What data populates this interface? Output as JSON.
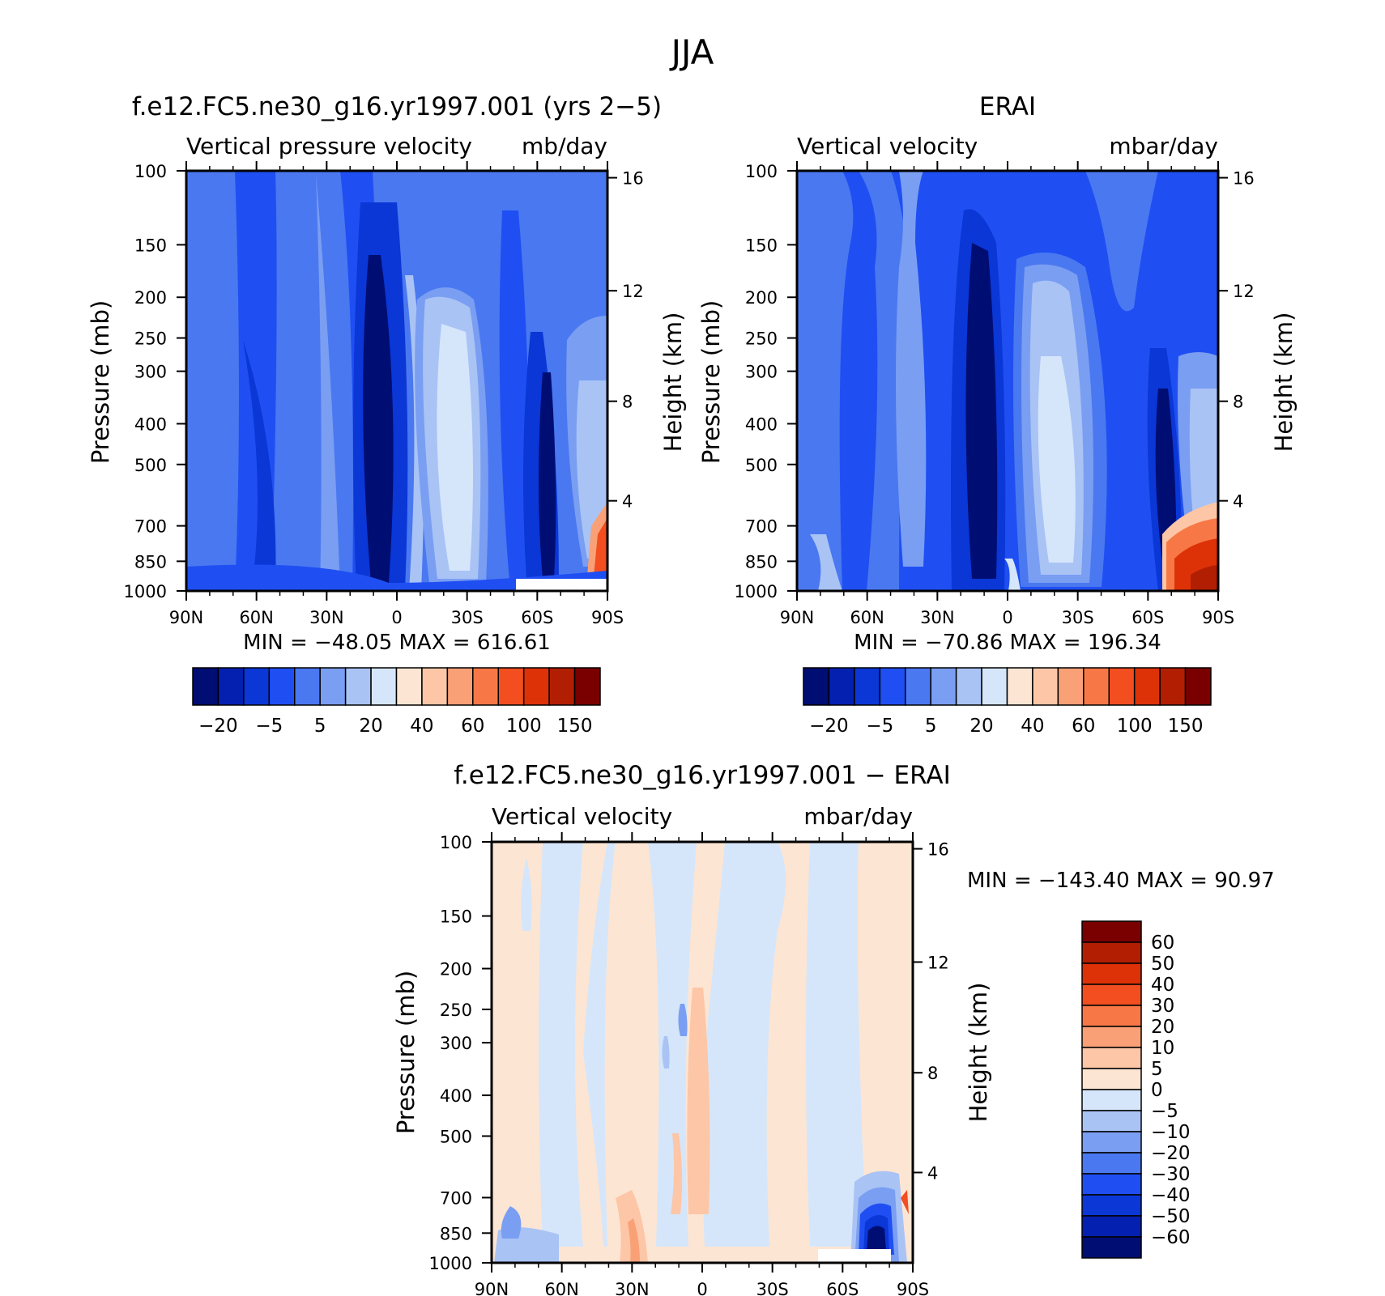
{
  "title": "JJA",
  "chart_data": [
    {
      "type": "contour",
      "title": "f.e12.FC5.ne30_g16.yr1997.001 (yrs 2−5)",
      "left_string": "Vertical pressure velocity",
      "right_string": "mb/day",
      "xlabel": "",
      "ylabel": "Pressure (mb)",
      "ylabel_right": "Height (km)",
      "x_ticks": [
        "90N",
        "60N",
        "30N",
        "0",
        "30S",
        "60S",
        "90S"
      ],
      "y_ticks": [
        "100",
        "150",
        "200",
        "250",
        "300",
        "400",
        "500",
        "700",
        "850",
        "1000"
      ],
      "y_ticks_right": [
        "16",
        "12",
        "8",
        "4"
      ],
      "min_max": "MIN = −48.05   MAX = 616.61",
      "colorbar": {
        "orientation": "horizontal",
        "colors": [
          "#000d73",
          "#0320b0",
          "#0a37d6",
          "#1f4ff2",
          "#4a78f0",
          "#7a9ef2",
          "#a9c3f5",
          "#d5e6fa",
          "#fde5d3",
          "#fcc6a7",
          "#faa077",
          "#f77846",
          "#f24e20",
          "#dd3108",
          "#b11e02",
          "#7a0000"
        ],
        "labels": [
          "−20",
          "−5",
          "5",
          "20",
          "40",
          "60",
          "100",
          "150"
        ]
      }
    },
    {
      "type": "contour",
      "title": "ERAI",
      "left_string": "Vertical velocity",
      "right_string": "mbar/day",
      "xlabel": "",
      "ylabel": "Pressure (mb)",
      "ylabel_right": "Height (km)",
      "x_ticks": [
        "90N",
        "60N",
        "30N",
        "0",
        "30S",
        "60S",
        "90S"
      ],
      "y_ticks": [
        "100",
        "150",
        "200",
        "250",
        "300",
        "400",
        "500",
        "700",
        "850",
        "1000"
      ],
      "y_ticks_right": [
        "16",
        "12",
        "8",
        "4"
      ],
      "min_max": "MIN = −70.86   MAX = 196.34",
      "colorbar": {
        "orientation": "horizontal",
        "colors": [
          "#000d73",
          "#0320b0",
          "#0a37d6",
          "#1f4ff2",
          "#4a78f0",
          "#7a9ef2",
          "#a9c3f5",
          "#d5e6fa",
          "#fde5d3",
          "#fcc6a7",
          "#faa077",
          "#f77846",
          "#f24e20",
          "#dd3108",
          "#b11e02",
          "#7a0000"
        ],
        "labels": [
          "−20",
          "−5",
          "5",
          "20",
          "40",
          "60",
          "100",
          "150"
        ]
      }
    },
    {
      "type": "contour",
      "title": "f.e12.FC5.ne30_g16.yr1997.001 − ERAI",
      "left_string": "Vertical velocity",
      "right_string": "mbar/day",
      "xlabel": "",
      "ylabel": "Pressure (mb)",
      "ylabel_right": "Height (km)",
      "x_ticks": [
        "90N",
        "60N",
        "30N",
        "0",
        "30S",
        "60S",
        "90S"
      ],
      "y_ticks": [
        "100",
        "150",
        "200",
        "250",
        "300",
        "400",
        "500",
        "700",
        "850",
        "1000"
      ],
      "y_ticks_right": [
        "16",
        "12",
        "8",
        "4"
      ],
      "min_max": "MIN = −143.40   MAX =   90.97",
      "colorbar": {
        "orientation": "vertical",
        "colors": [
          "#7a0000",
          "#b11e02",
          "#dd3108",
          "#f24e20",
          "#f77846",
          "#faa077",
          "#fcc6a7",
          "#fde5d3",
          "#d5e6fa",
          "#a9c3f5",
          "#7a9ef2",
          "#4a78f0",
          "#1f4ff2",
          "#0a37d6",
          "#0320b0",
          "#000d73"
        ],
        "labels": [
          "60",
          "50",
          "40",
          "30",
          "20",
          "10",
          "5",
          "0",
          "−5",
          "−10",
          "−20",
          "−30",
          "−40",
          "−50",
          "−60"
        ]
      }
    }
  ]
}
